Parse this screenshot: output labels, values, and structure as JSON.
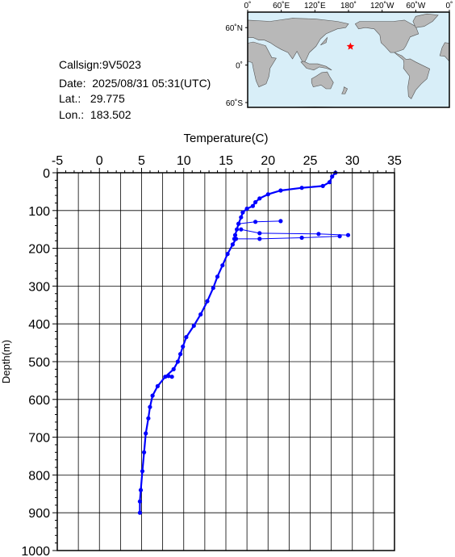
{
  "header": {
    "callsign_label": "Callsign:",
    "callsign": "9V5023",
    "date_label": "Date:",
    "date": "2025/08/31 05:31(UTC)",
    "lat_label": "Lat.:",
    "lat": "29.775",
    "lon_label": "Lon.:",
    "lon": "183.502"
  },
  "map": {
    "lon_ticks": [
      "0˚",
      "60˚E",
      "120˚E",
      "180˚",
      "120˚W",
      "60˚W",
      "0˚"
    ],
    "lat_ticks": [
      "60˚N",
      "0˚",
      "60˚S"
    ],
    "ocean_color": "#d8eef8",
    "land_color": "#b8b8b8",
    "marker_color": "#ff0000",
    "marker": {
      "lon": 183.502,
      "lat": 29.775
    }
  },
  "chart_data": {
    "type": "line",
    "xlabel": "Temperature(C)",
    "ylabel": "Depth(m)",
    "xlim": [
      -5,
      35
    ],
    "ylim": [
      0,
      1000
    ],
    "x_ticks": [
      "-5",
      "0",
      "5",
      "10",
      "15",
      "20",
      "25",
      "30",
      "35"
    ],
    "y_ticks": [
      "0",
      "100",
      "200",
      "300",
      "400",
      "500",
      "600",
      "700",
      "800",
      "900",
      "1000"
    ],
    "line_color": "#0000ff",
    "series": [
      {
        "points": [
          [
            28.0,
            0
          ],
          [
            27.6,
            10
          ],
          [
            27.3,
            25
          ],
          [
            26.5,
            35
          ],
          [
            24.0,
            40
          ],
          [
            21.5,
            47
          ],
          [
            20.0,
            57
          ],
          [
            19.0,
            68
          ],
          [
            18.5,
            78
          ],
          [
            18.2,
            88
          ],
          [
            17.5,
            95
          ],
          [
            17.0,
            105
          ],
          [
            16.8,
            118
          ],
          [
            16.5,
            135
          ],
          [
            16.3,
            150
          ],
          [
            16.1,
            165
          ],
          [
            16.2,
            175
          ],
          [
            15.8,
            190
          ],
          [
            15.2,
            215
          ],
          [
            14.6,
            245
          ],
          [
            14.0,
            275
          ],
          [
            13.5,
            305
          ],
          [
            12.8,
            340
          ],
          [
            12.0,
            375
          ],
          [
            11.2,
            405
          ],
          [
            10.3,
            435
          ],
          [
            9.9,
            460
          ],
          [
            9.6,
            480
          ],
          [
            9.3,
            500
          ],
          [
            8.8,
            520
          ],
          [
            7.8,
            540
          ],
          [
            6.9,
            565
          ],
          [
            6.3,
            590
          ],
          [
            6.0,
            620
          ],
          [
            5.8,
            650
          ],
          [
            5.5,
            690
          ],
          [
            5.3,
            740
          ],
          [
            5.1,
            790
          ],
          [
            4.9,
            840
          ],
          [
            4.8,
            870
          ],
          [
            4.8,
            900
          ]
        ]
      },
      {
        "points": [
          [
            16.5,
            135
          ],
          [
            18.5,
            130
          ],
          [
            21.5,
            128
          ]
        ]
      },
      {
        "points": [
          [
            16.8,
            150
          ],
          [
            19.0,
            160
          ],
          [
            26.0,
            162
          ],
          [
            29.5,
            165
          ]
        ]
      },
      {
        "points": [
          [
            16.0,
            175
          ],
          [
            19.0,
            175
          ],
          [
            24.0,
            172
          ],
          [
            28.5,
            168
          ]
        ]
      },
      {
        "points": [
          [
            8.2,
            538
          ],
          [
            8.6,
            540
          ]
        ]
      }
    ]
  }
}
